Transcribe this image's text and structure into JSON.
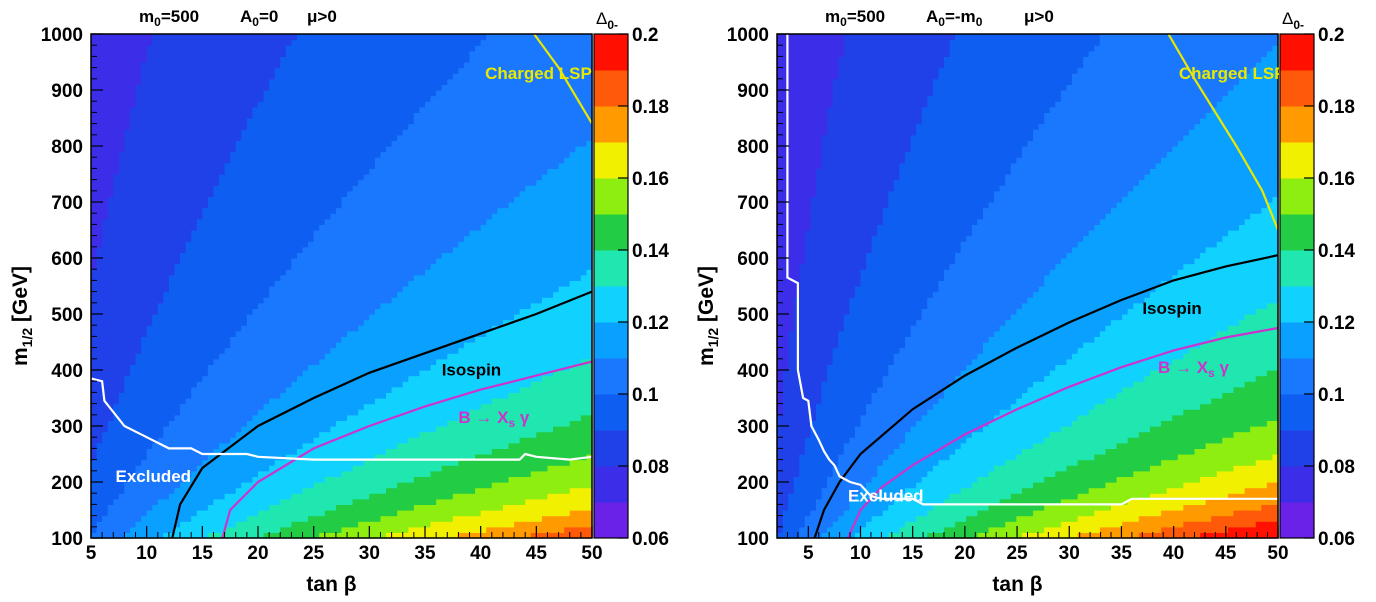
{
  "chart_data": [
    {
      "type": "heatmap",
      "header": {
        "m0": "m",
        "m0_sub": "0",
        "m0_val": "=500",
        "A0": "A",
        "A0_sub": "0",
        "A0_val": "=0",
        "mu": "μ>0"
      },
      "xlabel": "tan β",
      "ylabel": "m",
      "ylabel_sub": "1/2",
      "ylabel_unit": " [GeV]",
      "xlim": [
        5,
        50
      ],
      "ylim": [
        100,
        1000
      ],
      "xticks": [
        5,
        10,
        15,
        20,
        25,
        30,
        35,
        40,
        45,
        50
      ],
      "yticks": [
        100,
        200,
        300,
        400,
        500,
        600,
        700,
        800,
        900,
        1000
      ],
      "colorbar": {
        "label": "Δ",
        "label_sub": "0-",
        "min": 0.06,
        "max": 0.2,
        "ticks": [
          0.06,
          0.08,
          0.1,
          0.12,
          0.14,
          0.16,
          0.18,
          0.2
        ]
      },
      "contours": [
        {
          "name": "Isospin",
          "color": "#000000",
          "points": [
            [
              12.3,
              100
            ],
            [
              13,
              160
            ],
            [
              15,
              225
            ],
            [
              20,
              300
            ],
            [
              25,
              350
            ],
            [
              30,
              395
            ],
            [
              35,
              430
            ],
            [
              40,
              465
            ],
            [
              45,
              500
            ],
            [
              50,
              540
            ]
          ]
        },
        {
          "name": "B → Xs γ",
          "color": "#cc33cc",
          "points": [
            [
              16.8,
              100
            ],
            [
              17.5,
              150
            ],
            [
              20,
              200
            ],
            [
              25,
              260
            ],
            [
              30,
              300
            ],
            [
              35,
              335
            ],
            [
              40,
              365
            ],
            [
              45,
              390
            ],
            [
              50,
              415
            ]
          ]
        },
        {
          "name": "Excluded",
          "color": "#ffffff",
          "points": [
            [
              5,
              385
            ],
            [
              6,
              380
            ],
            [
              6.2,
              345
            ],
            [
              7,
              325
            ],
            [
              8,
              300
            ],
            [
              10,
              280
            ],
            [
              12,
              260
            ],
            [
              14,
              260
            ],
            [
              15,
              250
            ],
            [
              19,
              250
            ],
            [
              20,
              245
            ],
            [
              25,
              240
            ],
            [
              30,
              240
            ],
            [
              40,
              240
            ],
            [
              43.5,
              240
            ],
            [
              44,
              250
            ],
            [
              45,
              245
            ],
            [
              48,
              240
            ],
            [
              50,
              245
            ]
          ]
        },
        {
          "name": "Charged LSP",
          "color": "#e8e800",
          "points": [
            [
              44.8,
              1000
            ],
            [
              47,
              940
            ],
            [
              50,
              840
            ]
          ]
        }
      ],
      "annotations": [
        {
          "text": "Charged LSP",
          "x": 40.4,
          "y": 920,
          "color": "#e8e800"
        },
        {
          "text": "Isospin",
          "x": 36.5,
          "y": 390,
          "color": "#000000"
        },
        {
          "text": "B → X",
          "sub": "s",
          "after": " γ",
          "x": 38,
          "y": 305,
          "color": "#cc33cc"
        },
        {
          "text": "Excluded",
          "x": 7.2,
          "y": 200,
          "color": "#ffffff"
        }
      ],
      "field": {
        "a": 0.035,
        "b": 0.00012,
        "c": -0.02,
        "d": 0.065,
        "rot": 0.0
      }
    },
    {
      "type": "heatmap",
      "header": {
        "m0": "m",
        "m0_sub": "0",
        "m0_val": "=500",
        "A0": "A",
        "A0_sub": "0",
        "A0_val": "=-m",
        "A0_val_sub": "0",
        "mu": "μ>0"
      },
      "xlabel": "tan β",
      "ylabel": "m",
      "ylabel_sub": "1/2",
      "ylabel_unit": " [GeV]",
      "xlim": [
        2,
        50
      ],
      "ylim": [
        100,
        1000
      ],
      "xticks": [
        5,
        10,
        15,
        20,
        25,
        30,
        35,
        40,
        45,
        50
      ],
      "yticks": [
        100,
        200,
        300,
        400,
        500,
        600,
        700,
        800,
        900,
        1000
      ],
      "colorbar": {
        "label": "Δ",
        "label_sub": "0-",
        "min": 0.06,
        "max": 0.2,
        "ticks": [
          0.06,
          0.08,
          0.1,
          0.12,
          0.14,
          0.16,
          0.18,
          0.2
        ]
      },
      "contours": [
        {
          "name": "Isospin",
          "color": "#000000",
          "points": [
            [
              5.6,
              100
            ],
            [
              6.5,
              150
            ],
            [
              8,
              200
            ],
            [
              10,
              250
            ],
            [
              15,
              330
            ],
            [
              20,
              390
            ],
            [
              25,
              440
            ],
            [
              30,
              485
            ],
            [
              35,
              525
            ],
            [
              40,
              560
            ],
            [
              45,
              585
            ],
            [
              50,
              605
            ]
          ]
        },
        {
          "name": "B → Xs γ",
          "color": "#cc33cc",
          "points": [
            [
              8.8,
              100
            ],
            [
              10,
              150
            ],
            [
              12,
              190
            ],
            [
              15,
              230
            ],
            [
              20,
              285
            ],
            [
              25,
              330
            ],
            [
              30,
              370
            ],
            [
              35,
              405
            ],
            [
              40,
              435
            ],
            [
              45,
              458
            ],
            [
              50,
              475
            ]
          ]
        },
        {
          "name": "Excluded",
          "color": "#ffffff",
          "points": [
            [
              3,
              1000
            ],
            [
              3,
              565
            ],
            [
              4,
              555
            ],
            [
              4,
              400
            ],
            [
              4.5,
              350
            ],
            [
              5,
              345
            ],
            [
              5.3,
              300
            ],
            [
              6,
              275
            ],
            [
              6.5,
              255
            ],
            [
              7,
              240
            ],
            [
              7.5,
              230
            ],
            [
              8,
              210
            ],
            [
              9,
              200
            ],
            [
              10,
              195
            ],
            [
              11,
              175
            ],
            [
              12,
              170
            ],
            [
              15,
              170
            ],
            [
              16,
              160
            ],
            [
              25,
              160
            ],
            [
              35,
              160
            ],
            [
              36,
              170
            ],
            [
              50,
              170
            ]
          ]
        },
        {
          "name": "Charged LSP",
          "color": "#e8e800",
          "points": [
            [
              39.5,
              1000
            ],
            [
              42,
              920
            ],
            [
              46,
              800
            ],
            [
              48.5,
              720
            ],
            [
              50,
              650
            ]
          ]
        }
      ],
      "annotations": [
        {
          "text": "Charged LSP",
          "x": 40.5,
          "y": 920,
          "color": "#e8e800"
        },
        {
          "text": "Isospin",
          "x": 37,
          "y": 500,
          "color": "#000000"
        },
        {
          "text": "B → X",
          "sub": "s",
          "after": " γ",
          "x": 38.5,
          "y": 395,
          "color": "#cc33cc"
        },
        {
          "text": "Excluded",
          "x": 8.8,
          "y": 165,
          "color": "#ffffff"
        }
      ],
      "field": {
        "a": 0.04,
        "b": 0.00016,
        "c": -0.015,
        "d": 0.06,
        "rot": 0.0
      }
    }
  ]
}
